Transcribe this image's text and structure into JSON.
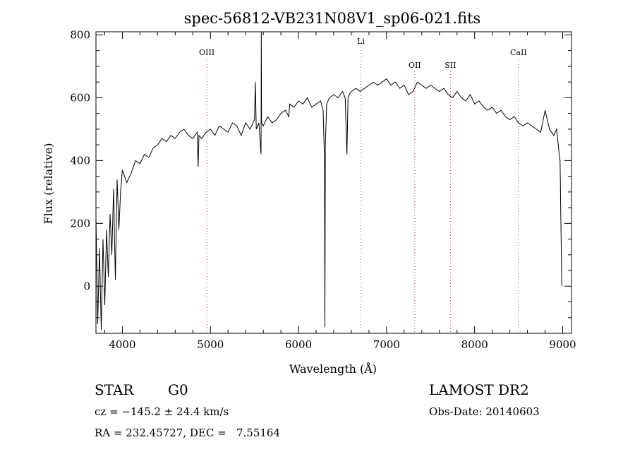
{
  "chart_data": {
    "type": "line",
    "title": "spec-56812-VB231N08V1_sp06-021.fits",
    "xlabel": "Wavelength (Å)",
    "ylabel": "Flux (relative)",
    "xlim": [
      3700,
      9100
    ],
    "ylim": [
      -150,
      810
    ],
    "xticks": [
      4000,
      5000,
      6000,
      7000,
      8000,
      9000
    ],
    "yticks": [
      0,
      200,
      400,
      600,
      800
    ],
    "grid": false,
    "colors": {
      "spectrum": "#000000",
      "lines": "#e03030"
    },
    "lines": [
      {
        "name": "OIII",
        "x": 4959
      },
      {
        "name": "Li",
        "x": 6708
      },
      {
        "name": "OII",
        "x": 7320
      },
      {
        "name": "SII",
        "x": 7725
      },
      {
        "name": "CaII",
        "x": 8498
      }
    ],
    "series": [
      {
        "x": [
          3700,
          3720,
          3740,
          3760,
          3780,
          3800,
          3820,
          3840,
          3860,
          3880,
          3900,
          3920,
          3940,
          3960,
          3980,
          4000,
          4050,
          4100,
          4150,
          4200,
          4250,
          4300,
          4350,
          4400,
          4450,
          4500,
          4550,
          4600,
          4650,
          4700,
          4750,
          4800,
          4850,
          4860,
          4870,
          4900,
          4950,
          5000,
          5050,
          5100,
          5150,
          5200,
          5250,
          5300,
          5350,
          5400,
          5450,
          5500,
          5510,
          5520,
          5550,
          5575,
          5577,
          5580,
          5600,
          5650,
          5700,
          5750,
          5800,
          5850,
          5890,
          5900,
          5950,
          6000,
          6050,
          6100,
          6150,
          6200,
          6250,
          6280,
          6295,
          6300,
          6305,
          6320,
          6350,
          6400,
          6450,
          6500,
          6530,
          6550,
          6563,
          6575,
          6600,
          6650,
          6700,
          6750,
          6800,
          6850,
          6900,
          6950,
          7000,
          7050,
          7100,
          7150,
          7200,
          7250,
          7300,
          7350,
          7400,
          7450,
          7500,
          7550,
          7600,
          7650,
          7700,
          7750,
          7800,
          7850,
          7900,
          7950,
          8000,
          8050,
          8100,
          8150,
          8200,
          8250,
          8300,
          8350,
          8400,
          8450,
          8500,
          8550,
          8600,
          8650,
          8700,
          8750,
          8800,
          8850,
          8900,
          8930,
          8950,
          8960,
          8970,
          8980,
          8990
        ],
        "y": [
          220,
          -120,
          120,
          -140,
          150,
          -60,
          180,
          30,
          230,
          100,
          310,
          20,
          340,
          180,
          300,
          370,
          330,
          360,
          400,
          390,
          420,
          410,
          440,
          450,
          470,
          460,
          480,
          470,
          490,
          500,
          480,
          470,
          490,
          380,
          480,
          470,
          490,
          500,
          480,
          510,
          500,
          490,
          520,
          510,
          480,
          520,
          500,
          530,
          650,
          500,
          520,
          420,
          810,
          520,
          510,
          540,
          520,
          530,
          550,
          560,
          540,
          580,
          570,
          590,
          580,
          600,
          570,
          580,
          590,
          560,
          400,
          -130,
          450,
          580,
          600,
          610,
          600,
          620,
          600,
          420,
          600,
          610,
          620,
          630,
          620,
          630,
          640,
          650,
          640,
          650,
          660,
          640,
          650,
          630,
          640,
          610,
          620,
          650,
          640,
          630,
          640,
          630,
          620,
          630,
          610,
          600,
          620,
          600,
          590,
          610,
          580,
          590,
          570,
          560,
          570,
          550,
          560,
          540,
          530,
          540,
          520,
          510,
          520,
          510,
          500,
          490,
          560,
          500,
          480,
          500,
          450,
          420,
          400,
          200,
          0
        ]
      }
    ]
  },
  "footer": {
    "object_type": "STAR",
    "subclass": "G0",
    "survey": "LAMOST DR2",
    "cz": "cz = −145.2 ± 24.4 km/s",
    "obs_date": "Obs-Date: 20140603",
    "radec": "RA = 232.45727, DEC =   7.55164"
  }
}
